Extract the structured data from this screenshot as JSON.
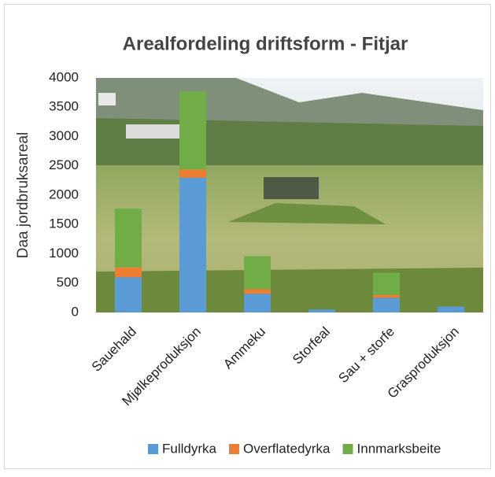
{
  "chart_data": {
    "type": "stacked_bar",
    "title": "Arealfordeling driftsform - Fitjar",
    "y_label": "Daa jordbruksareal",
    "categories": [
      "Sauehald",
      "Mjølkeproduksjon",
      "Ammeku",
      "Storfeal",
      "Sau + storfe",
      "Grasproduksjon"
    ],
    "series": [
      {
        "name": "Fulldyrka",
        "color": "#5b9bd5",
        "values": [
          600,
          2300,
          320,
          50,
          250,
          100
        ]
      },
      {
        "name": "Overflatedyrka",
        "color": "#ed7d31",
        "values": [
          170,
          140,
          80,
          0,
          50,
          0
        ]
      },
      {
        "name": "Innmarksbeite",
        "color": "#70ad47",
        "values": [
          1000,
          1330,
          560,
          0,
          380,
          0
        ]
      }
    ],
    "ylim": [
      0,
      4000
    ],
    "yticks": [
      0,
      500,
      1000,
      1500,
      2000,
      2500,
      3000,
      3500,
      4000
    ],
    "grid": false
  }
}
